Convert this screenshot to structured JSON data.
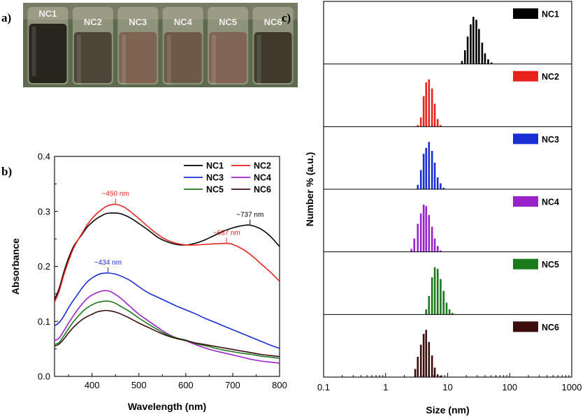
{
  "panel_labels": {
    "a": "a)",
    "b": "b)",
    "c": "c)"
  },
  "photo": {
    "vials": [
      {
        "label": "NC1",
        "color": "#27261d"
      },
      {
        "label": "NC2",
        "color": "#4e4437"
      },
      {
        "label": "NC3",
        "color": "#7d6350"
      },
      {
        "label": "NC4",
        "color": "#6e5846"
      },
      {
        "label": "NC5",
        "color": "#806454"
      },
      {
        "label": "NC6",
        "color": "#3f3a2c"
      }
    ]
  },
  "chart_data": [
    {
      "type": "line",
      "title": "",
      "xlabel": "Wavelength (nm)",
      "ylabel": "Absorbance",
      "xlim": [
        320,
        800
      ],
      "ylim": [
        0.0,
        0.4
      ],
      "xticks": [
        "400",
        "500",
        "600",
        "700",
        "800"
      ],
      "yticks": [
        "0.0",
        "0.1",
        "0.2",
        "0.3",
        "0.4"
      ],
      "legend": "top-right",
      "series": [
        {
          "name": "NC1",
          "color": "#000000",
          "x": [
            320,
            330,
            340,
            350,
            360,
            370,
            380,
            390,
            400,
            410,
            420,
            430,
            440,
            450,
            460,
            470,
            480,
            490,
            500,
            520,
            540,
            560,
            580,
            600,
            620,
            640,
            660,
            680,
            700,
            720,
            737,
            760,
            780,
            800
          ],
          "y": [
            0.14,
            0.16,
            0.19,
            0.215,
            0.235,
            0.248,
            0.26,
            0.272,
            0.28,
            0.287,
            0.292,
            0.296,
            0.297,
            0.297,
            0.296,
            0.293,
            0.289,
            0.284,
            0.278,
            0.266,
            0.253,
            0.245,
            0.24,
            0.239,
            0.242,
            0.248,
            0.256,
            0.264,
            0.27,
            0.274,
            0.275,
            0.268,
            0.255,
            0.236
          ]
        },
        {
          "name": "NC2",
          "color": "#e8231e",
          "x": [
            320,
            330,
            340,
            350,
            360,
            370,
            380,
            390,
            400,
            410,
            420,
            430,
            440,
            450,
            460,
            470,
            480,
            490,
            500,
            520,
            540,
            560,
            580,
            600,
            620,
            640,
            660,
            687,
            700,
            720,
            740,
            760,
            780,
            800
          ],
          "y": [
            0.135,
            0.155,
            0.185,
            0.21,
            0.232,
            0.248,
            0.262,
            0.276,
            0.287,
            0.296,
            0.303,
            0.309,
            0.312,
            0.313,
            0.311,
            0.307,
            0.301,
            0.294,
            0.287,
            0.272,
            0.258,
            0.248,
            0.242,
            0.239,
            0.239,
            0.24,
            0.241,
            0.242,
            0.24,
            0.232,
            0.22,
            0.205,
            0.19,
            0.173
          ]
        },
        {
          "name": "NC3",
          "color": "#1a2ed6",
          "x": [
            320,
            330,
            340,
            350,
            360,
            370,
            380,
            390,
            400,
            410,
            420,
            434,
            450,
            460,
            480,
            500,
            520,
            540,
            560,
            580,
            600,
            620,
            640,
            660,
            680,
            700,
            720,
            740,
            760,
            780,
            800
          ],
          "y": [
            0.092,
            0.098,
            0.11,
            0.125,
            0.138,
            0.15,
            0.162,
            0.172,
            0.179,
            0.184,
            0.187,
            0.188,
            0.186,
            0.183,
            0.175,
            0.163,
            0.152,
            0.144,
            0.136,
            0.128,
            0.121,
            0.114,
            0.106,
            0.099,
            0.092,
            0.085,
            0.078,
            0.071,
            0.064,
            0.057,
            0.051
          ]
        },
        {
          "name": "NC4",
          "color": "#9a22c9",
          "x": [
            320,
            330,
            340,
            350,
            360,
            370,
            380,
            390,
            400,
            410,
            420,
            430,
            440,
            450,
            460,
            480,
            500,
            520,
            540,
            560,
            580,
            600,
            620,
            640,
            660,
            680,
            700,
            720,
            740,
            760,
            780,
            800
          ],
          "y": [
            0.065,
            0.07,
            0.083,
            0.097,
            0.11,
            0.122,
            0.133,
            0.142,
            0.148,
            0.152,
            0.155,
            0.156,
            0.154,
            0.149,
            0.143,
            0.128,
            0.113,
            0.101,
            0.089,
            0.078,
            0.07,
            0.065,
            0.058,
            0.052,
            0.047,
            0.043,
            0.039,
            0.035,
            0.031,
            0.028,
            0.026,
            0.024
          ]
        },
        {
          "name": "NC5",
          "color": "#1b7a1b",
          "x": [
            320,
            330,
            340,
            350,
            360,
            370,
            380,
            390,
            400,
            410,
            420,
            430,
            440,
            450,
            460,
            480,
            500,
            520,
            540,
            560,
            580,
            600,
            620,
            640,
            660,
            680,
            700,
            720,
            740,
            760,
            780,
            800
          ],
          "y": [
            0.058,
            0.062,
            0.074,
            0.087,
            0.099,
            0.109,
            0.118,
            0.125,
            0.13,
            0.134,
            0.136,
            0.137,
            0.136,
            0.133,
            0.128,
            0.118,
            0.106,
            0.095,
            0.085,
            0.076,
            0.07,
            0.066,
            0.06,
            0.056,
            0.052,
            0.048,
            0.045,
            0.042,
            0.04,
            0.037,
            0.035,
            0.033
          ]
        },
        {
          "name": "NC6",
          "color": "#3c0d0d",
          "x": [
            320,
            330,
            340,
            350,
            360,
            370,
            380,
            390,
            400,
            410,
            420,
            430,
            440,
            450,
            460,
            480,
            500,
            520,
            540,
            560,
            580,
            600,
            620,
            640,
            660,
            680,
            700,
            720,
            740,
            760,
            780,
            800
          ],
          "y": [
            0.055,
            0.059,
            0.068,
            0.079,
            0.089,
            0.097,
            0.104,
            0.109,
            0.113,
            0.117,
            0.119,
            0.12,
            0.119,
            0.117,
            0.114,
            0.106,
            0.097,
            0.089,
            0.081,
            0.074,
            0.069,
            0.065,
            0.061,
            0.058,
            0.055,
            0.052,
            0.049,
            0.046,
            0.043,
            0.04,
            0.038,
            0.036
          ]
        }
      ],
      "annotations": [
        {
          "text": "~450 nm",
          "x": 450,
          "y": 0.313,
          "color": "#e8231e"
        },
        {
          "text": "~737 nm",
          "x": 737,
          "y": 0.275,
          "color": "#000000"
        },
        {
          "text": "~687 nm",
          "x": 687,
          "y": 0.242,
          "color": "#e8231e"
        },
        {
          "text": "~434 nm",
          "x": 434,
          "y": 0.188,
          "color": "#1a2ed6"
        }
      ]
    },
    {
      "type": "bar",
      "title": "",
      "xlabel": "Size (nm)",
      "ylabel": "Number % (a.u.)",
      "xscale": "log",
      "xlim": [
        0.1,
        1000
      ],
      "xticks": [
        "0.1",
        "1",
        "10",
        "100",
        "1000"
      ],
      "legend": "top-right",
      "series": [
        {
          "name": "NC1",
          "color": "#000000",
          "sizes": [
            17,
            19,
            21,
            23.5,
            26,
            29,
            32,
            36,
            40,
            45,
            51
          ],
          "values": [
            2,
            9,
            18,
            26,
            31,
            29,
            23,
            14,
            7,
            3,
            1
          ]
        },
        {
          "name": "NC2",
          "color": "#e8231e",
          "sizes": [
            3.3,
            3.7,
            4.1,
            4.5,
            5.0,
            5.6,
            6.2,
            6.9,
            7.7
          ],
          "values": [
            1,
            6,
            20,
            29,
            31,
            25,
            15,
            5,
            1
          ]
        },
        {
          "name": "NC3",
          "color": "#1a2ed6",
          "sizes": [
            3.3,
            3.7,
            4.1,
            4.5,
            5.0,
            5.6,
            6.2,
            6.9,
            7.7,
            8.6
          ],
          "values": [
            3,
            13,
            24,
            28,
            32,
            26,
            18,
            8,
            4,
            1
          ]
        },
        {
          "name": "NC4",
          "color": "#9a22c9",
          "sizes": [
            2.6,
            2.9,
            3.3,
            3.7,
            4.1,
            4.5,
            5.0,
            5.6,
            6.2,
            6.9,
            7.7
          ],
          "values": [
            2,
            9,
            19,
            26,
            32,
            31,
            25,
            17,
            9,
            4,
            1
          ]
        },
        {
          "name": "NC5",
          "color": "#1b7a1b",
          "sizes": [
            4.5,
            5.0,
            5.6,
            6.2,
            6.9,
            7.7,
            8.6,
            9.6,
            10.7,
            11.9
          ],
          "values": [
            3,
            11,
            22,
            28,
            27,
            21,
            14,
            7,
            3,
            1
          ]
        },
        {
          "name": "NC6",
          "color": "#3c0d0d",
          "sizes": [
            3.0,
            3.3,
            3.7,
            4.1,
            4.5,
            5.0,
            5.6,
            6.2,
            6.9,
            7.7
          ],
          "values": [
            6,
            15,
            24,
            32,
            35,
            26,
            16,
            7,
            2,
            1
          ]
        }
      ]
    }
  ]
}
